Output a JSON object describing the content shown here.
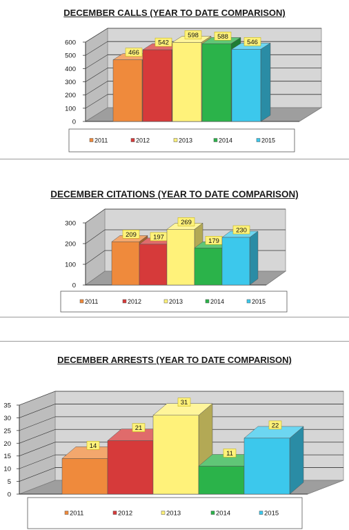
{
  "chart_data": [
    {
      "type": "bar",
      "title": "DECEMBER CALLS (YEAR TO DATE COMPARISON)",
      "categories": [
        "2011",
        "2012",
        "2013",
        "2014",
        "2015"
      ],
      "values": [
        466,
        542,
        598,
        588,
        546
      ],
      "data_labels": [
        "466",
        "542",
        "598",
        "588",
        "546"
      ],
      "yticks": [
        "0",
        "100",
        "200",
        "300",
        "400",
        "500",
        "600"
      ],
      "ylim": [
        0,
        600
      ],
      "grid": true,
      "legend": "bottom",
      "colors": [
        "#ef8a3c",
        "#d63a3a",
        "#fff27a",
        "#2bb34a",
        "#3cc8ec"
      ]
    },
    {
      "type": "bar",
      "title": "DECEMBER CITATIONS (YEAR TO DATE COMPARISON)",
      "categories": [
        "2011",
        "2012",
        "2013",
        "2014",
        "2015"
      ],
      "values": [
        209,
        197,
        269,
        179,
        230
      ],
      "data_labels": [
        "209",
        "197",
        "269",
        "179",
        "230"
      ],
      "yticks": [
        "0",
        "100",
        "200",
        "300"
      ],
      "ylim": [
        0,
        300
      ],
      "grid": true,
      "legend": "bottom",
      "colors": [
        "#ef8a3c",
        "#d63a3a",
        "#fff27a",
        "#2bb34a",
        "#3cc8ec"
      ]
    },
    {
      "type": "bar",
      "title": "DECEMBER ARRESTS (YEAR TO DATE COMPARISON)",
      "categories": [
        "2011",
        "2012",
        "2013",
        "2014",
        "2015"
      ],
      "values": [
        14,
        21,
        31,
        11,
        22
      ],
      "data_labels": [
        "14",
        "21",
        "31",
        "11",
        "22"
      ],
      "yticks": [
        "0",
        "5",
        "10",
        "15",
        "20",
        "25",
        "30",
        "35"
      ],
      "ylim": [
        0,
        35
      ],
      "grid": true,
      "legend": "bottom",
      "colors": [
        "#ef8a3c",
        "#d63a3a",
        "#fff27a",
        "#2bb34a",
        "#3cc8ec"
      ]
    }
  ]
}
